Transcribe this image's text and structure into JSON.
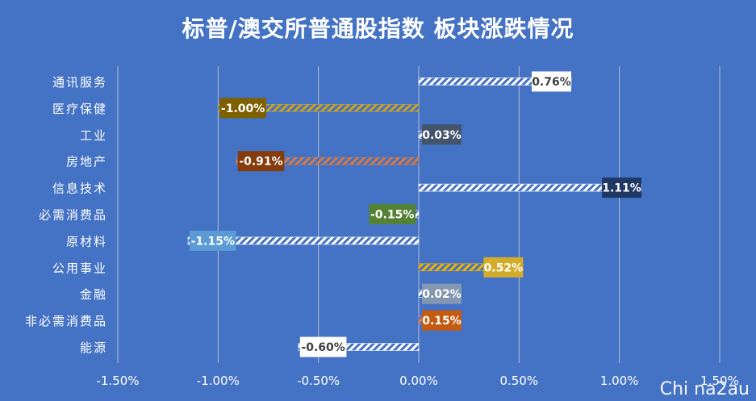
{
  "chart_data": {
    "type": "bar",
    "orientation": "horizontal",
    "title": "标普/澳交所普通股指数 板块涨跌情况",
    "categories": [
      "通讯服务",
      "医疗保健",
      "工业",
      "房地产",
      "信息技术",
      "必需消费品",
      "原材料",
      "公用事业",
      "金融",
      "非必需消费品",
      "能源"
    ],
    "values": [
      0.76,
      -1.0,
      0.03,
      -0.91,
      1.11,
      -0.15,
      -1.15,
      0.52,
      0.02,
      0.15,
      -0.6
    ],
    "data_labels": [
      "0.76%",
      "-1.00%",
      "0.03%",
      "-0.91%",
      "1.11%",
      "-0.15%",
      "-1.15%",
      "0.52%",
      "0.02%",
      "0.15%",
      "-0.60%"
    ],
    "label_colors": [
      "#ffffff",
      "#7f6000",
      "#44546a",
      "#843c0c",
      "#1f3864",
      "#548235",
      "#5b9bd5",
      "#d4ac2b",
      "#8497b0",
      "#c55a11",
      "#ffffff"
    ],
    "bar_colors": [
      "#ffffff",
      "#c9a227",
      "#ffffff",
      "#d57a44",
      "#ffffff",
      "#ffffff",
      "#ffffff",
      "#f0b400",
      "#ffffff",
      "#ed7d31",
      "#ffffff"
    ],
    "xlim": [
      -1.5,
      1.5
    ],
    "xticks": [
      "-1.50%",
      "-1.00%",
      "-0.50%",
      "0.00%",
      "0.50%",
      "1.00%",
      "1.50%"
    ],
    "xtick_values": [
      -1.5,
      -1.0,
      -0.5,
      0.0,
      0.5,
      1.0,
      1.5
    ],
    "grid": true,
    "legend": "none",
    "background_color": "#4472c4"
  },
  "watermark": "Chi na2au"
}
